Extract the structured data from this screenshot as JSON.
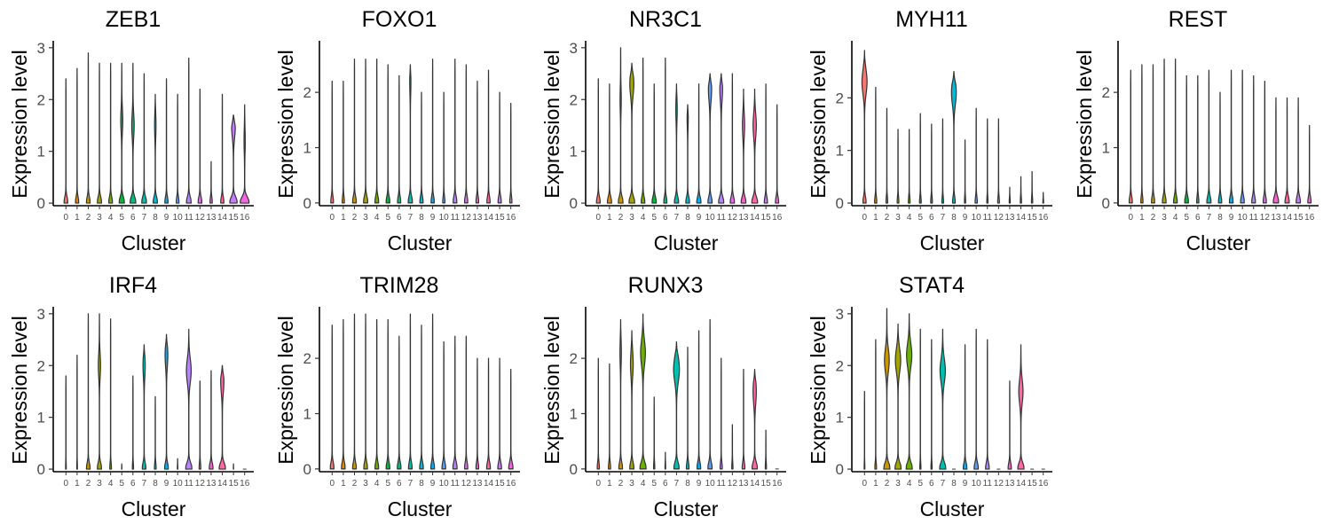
{
  "colors": [
    "#F8766D",
    "#E58700",
    "#C99800",
    "#A3A500",
    "#6BB100",
    "#00BA38",
    "#00BF7D",
    "#00C0AF",
    "#00BCD8",
    "#00B0F6",
    "#619CFF",
    "#B983FF",
    "#E76BF3",
    "#FD61D1",
    "#FF67A4",
    "#C77CFF",
    "#F564E3"
  ],
  "chart_data": [
    {
      "type": "violin",
      "title": "ZEB1",
      "xlabel": "Cluster",
      "ylabel": "Expression level",
      "categories": [
        "0",
        "1",
        "2",
        "3",
        "4",
        "5",
        "6",
        "7",
        "8",
        "9",
        "10",
        "11",
        "12",
        "13",
        "14",
        "15",
        "16"
      ],
      "yticks": [
        0,
        1,
        2,
        3
      ],
      "ylim": [
        -0.05,
        3.1
      ],
      "max": [
        2.4,
        2.6,
        2.9,
        2.7,
        2.7,
        2.7,
        2.7,
        2.5,
        2.1,
        2.4,
        2.1,
        2.8,
        2.2,
        0.8,
        2.1,
        1.7,
        1.9
      ],
      "width": [
        0.35,
        0.3,
        0.35,
        0.4,
        0.35,
        0.5,
        0.55,
        0.45,
        0.4,
        0.3,
        0.25,
        0.45,
        0.35,
        0.2,
        0.3,
        0.7,
        0.85
      ],
      "bulge": [
        null,
        null,
        null,
        null,
        null,
        [
          1.6,
          0.18
        ],
        [
          1.5,
          0.22
        ],
        null,
        [
          1.5,
          0.12
        ],
        null,
        null,
        null,
        null,
        null,
        null,
        [
          1.5,
          0.35
        ],
        [
          1.2,
          0.1
        ]
      ]
    },
    {
      "type": "violin",
      "title": "FOXO1",
      "xlabel": "Cluster",
      "ylabel": "Expression level",
      "categories": [
        "0",
        "1",
        "2",
        "3",
        "4",
        "5",
        "6",
        "7",
        "8",
        "9",
        "10",
        "11",
        "12",
        "13",
        "14",
        "15",
        "16"
      ],
      "yticks": [
        0,
        1,
        2
      ],
      "ylim": [
        -0.05,
        2.9
      ],
      "max": [
        2.2,
        2.2,
        2.6,
        2.6,
        2.6,
        2.5,
        2.3,
        2.5,
        2.0,
        2.6,
        2.0,
        2.6,
        2.5,
        2.2,
        2.4,
        2.0,
        1.8
      ],
      "width": [
        0.25,
        0.2,
        0.35,
        0.4,
        0.35,
        0.35,
        0.3,
        0.4,
        0.3,
        0.3,
        0.2,
        0.35,
        0.3,
        0.25,
        0.3,
        0.3,
        0.2
      ],
      "bulge": [
        null,
        null,
        null,
        null,
        null,
        null,
        null,
        [
          2.2,
          0.1
        ],
        null,
        null,
        null,
        null,
        null,
        null,
        null,
        null,
        null
      ]
    },
    {
      "type": "violin",
      "title": "NR3C1",
      "xlabel": "Cluster",
      "ylabel": "Expression level",
      "categories": [
        "0",
        "1",
        "2",
        "3",
        "4",
        "5",
        "6",
        "7",
        "8",
        "9",
        "10",
        "11",
        "12",
        "13",
        "14",
        "15",
        "16"
      ],
      "yticks": [
        0,
        1,
        2,
        3
      ],
      "ylim": [
        -0.05,
        3.1
      ],
      "max": [
        2.4,
        2.3,
        3.0,
        2.7,
        2.8,
        2.3,
        2.8,
        2.3,
        1.9,
        2.3,
        2.5,
        2.5,
        2.5,
        2.2,
        2.2,
        2.3,
        1.9
      ],
      "width": [
        0.35,
        0.4,
        0.45,
        0.55,
        0.35,
        0.4,
        0.3,
        0.4,
        0.35,
        0.4,
        0.4,
        0.5,
        0.4,
        0.45,
        0.55,
        0.3,
        0.3
      ],
      "bulge": [
        null,
        null,
        [
          2.0,
          0.1
        ],
        [
          2.3,
          0.38
        ],
        null,
        null,
        null,
        [
          1.8,
          0.12
        ],
        [
          1.7,
          0.1
        ],
        null,
        [
          2.2,
          0.3
        ],
        [
          2.2,
          0.25
        ],
        null,
        [
          1.5,
          0.2
        ],
        [
          1.5,
          0.3
        ],
        null,
        null
      ]
    },
    {
      "type": "violin",
      "title": "MYH11",
      "xlabel": "Cluster",
      "ylabel": "Expression level",
      "categories": [
        "0",
        "1",
        "2",
        "3",
        "4",
        "5",
        "6",
        "7",
        "8",
        "9",
        "10",
        "11",
        "12",
        "13",
        "14",
        "15",
        "16"
      ],
      "yticks": [
        0,
        1,
        2
      ],
      "ylim": [
        -0.05,
        3.05
      ],
      "max": [
        2.9,
        2.2,
        1.8,
        1.4,
        1.4,
        1.7,
        1.5,
        1.6,
        2.5,
        1.2,
        1.8,
        1.6,
        1.6,
        0.3,
        0.5,
        0.6,
        0.2
      ],
      "width": [
        0.3,
        0.2,
        0.15,
        0.15,
        0.15,
        0.15,
        0.15,
        0.15,
        0.25,
        0.1,
        0.2,
        0.1,
        0.15,
        0.08,
        0.1,
        0.1,
        0.08
      ],
      "bulge": [
        [
          2.3,
          0.48
        ],
        null,
        null,
        null,
        null,
        null,
        null,
        null,
        [
          2.1,
          0.45
        ],
        null,
        null,
        null,
        null,
        null,
        null,
        null,
        null
      ]
    },
    {
      "type": "violin",
      "title": "REST",
      "xlabel": "Cluster",
      "ylabel": "Expression level",
      "categories": [
        "0",
        "1",
        "2",
        "3",
        "4",
        "5",
        "6",
        "7",
        "8",
        "9",
        "10",
        "11",
        "12",
        "13",
        "14",
        "15",
        "16"
      ],
      "yticks": [
        0,
        1,
        2
      ],
      "ylim": [
        -0.05,
        2.9
      ],
      "max": [
        2.4,
        2.5,
        2.5,
        2.6,
        2.6,
        2.3,
        2.3,
        2.4,
        2.0,
        2.4,
        2.4,
        2.3,
        2.2,
        1.9,
        1.9,
        1.9,
        1.4
      ],
      "width": [
        0.3,
        0.2,
        0.3,
        0.35,
        0.35,
        0.35,
        0.2,
        0.4,
        0.3,
        0.35,
        0.35,
        0.35,
        0.3,
        0.5,
        0.4,
        0.4,
        0.3
      ],
      "bulge": [
        null,
        null,
        null,
        null,
        null,
        null,
        null,
        null,
        null,
        null,
        null,
        null,
        null,
        null,
        null,
        null,
        null
      ]
    },
    {
      "type": "violin",
      "title": "IRF4",
      "xlabel": "Cluster",
      "ylabel": "Expression level",
      "categories": [
        "0",
        "1",
        "2",
        "3",
        "4",
        "5",
        "6",
        "7",
        "8",
        "9",
        "10",
        "11",
        "12",
        "13",
        "14",
        "15",
        "16"
      ],
      "yticks": [
        0,
        1,
        2,
        3
      ],
      "ylim": [
        -0.05,
        3.1
      ],
      "max": [
        1.8,
        2.2,
        3.0,
        3.0,
        2.9,
        0.1,
        1.8,
        2.4,
        1.4,
        2.6,
        0.2,
        2.7,
        1.7,
        1.9,
        2.0,
        0.1,
        0.0
      ],
      "width": [
        0.05,
        0.05,
        0.35,
        0.4,
        0.15,
        0.05,
        0.1,
        0.35,
        0.15,
        0.35,
        0.05,
        0.6,
        0.15,
        0.35,
        0.6,
        0.05,
        0.0
      ],
      "bulge": [
        null,
        null,
        null,
        [
          2.0,
          0.2
        ],
        null,
        null,
        null,
        [
          2.0,
          0.2
        ],
        null,
        [
          2.2,
          0.25
        ],
        null,
        [
          1.9,
          0.45
        ],
        null,
        null,
        [
          1.7,
          0.3
        ],
        null,
        null
      ]
    },
    {
      "type": "violin",
      "title": "TRIM28",
      "xlabel": "Cluster",
      "ylabel": "Expression level",
      "categories": [
        "0",
        "1",
        "2",
        "3",
        "4",
        "5",
        "6",
        "7",
        "8",
        "9",
        "10",
        "11",
        "12",
        "13",
        "14",
        "15",
        "16"
      ],
      "yticks": [
        0,
        1,
        2
      ],
      "ylim": [
        -0.05,
        2.9
      ],
      "max": [
        2.6,
        2.7,
        2.8,
        2.8,
        2.7,
        2.7,
        2.4,
        2.8,
        2.6,
        2.8,
        2.3,
        2.4,
        2.4,
        2.0,
        2.0,
        2.0,
        1.8
      ],
      "width": [
        0.35,
        0.35,
        0.35,
        0.35,
        0.35,
        0.35,
        0.35,
        0.35,
        0.35,
        0.35,
        0.35,
        0.4,
        0.3,
        0.25,
        0.35,
        0.35,
        0.4
      ],
      "bulge": [
        null,
        null,
        null,
        null,
        null,
        null,
        null,
        null,
        null,
        null,
        null,
        null,
        null,
        null,
        null,
        null,
        null
      ]
    },
    {
      "type": "violin",
      "title": "RUNX3",
      "xlabel": "Cluster",
      "ylabel": "Expression level",
      "categories": [
        "0",
        "1",
        "2",
        "3",
        "4",
        "5",
        "6",
        "7",
        "8",
        "9",
        "10",
        "11",
        "12",
        "13",
        "14",
        "15",
        "16"
      ],
      "yticks": [
        0,
        1,
        2
      ],
      "ylim": [
        -0.05,
        2.9
      ],
      "max": [
        2.0,
        1.9,
        2.7,
        2.5,
        2.8,
        1.3,
        0.3,
        2.3,
        2.2,
        2.5,
        2.7,
        2.0,
        0.8,
        1.8,
        1.8,
        0.7,
        0.0
      ],
      "width": [
        0.2,
        0.2,
        0.35,
        0.4,
        0.6,
        0.1,
        0.05,
        0.5,
        0.25,
        0.35,
        0.4,
        0.2,
        0.1,
        0.25,
        0.5,
        0.1,
        0.0
      ],
      "bulge": [
        null,
        null,
        [
          2.1,
          0.12
        ],
        [
          1.9,
          0.25
        ],
        [
          2.1,
          0.45
        ],
        null,
        null,
        [
          1.8,
          0.55
        ],
        null,
        null,
        null,
        null,
        null,
        null,
        [
          1.4,
          0.3
        ],
        null,
        null
      ]
    },
    {
      "type": "violin",
      "title": "STAT4",
      "xlabel": "Cluster",
      "ylabel": "Expression level",
      "categories": [
        "0",
        "1",
        "2",
        "3",
        "4",
        "5",
        "6",
        "7",
        "8",
        "9",
        "10",
        "11",
        "12",
        "13",
        "14",
        "15",
        "16"
      ],
      "yticks": [
        0,
        1,
        2,
        3
      ],
      "ylim": [
        -0.05,
        3.1
      ],
      "max": [
        1.5,
        2.5,
        3.1,
        2.8,
        3.0,
        2.7,
        2.5,
        2.7,
        0.0,
        2.4,
        2.7,
        2.5,
        0.0,
        1.7,
        2.4,
        0.0,
        0.0
      ],
      "width": [
        0.05,
        0.15,
        0.6,
        0.6,
        0.6,
        0.1,
        0.1,
        0.6,
        0.0,
        0.35,
        0.4,
        0.35,
        0.0,
        0.3,
        0.6,
        0.0,
        0.0
      ],
      "bulge": [
        null,
        null,
        [
          2.1,
          0.45
        ],
        [
          2.1,
          0.5
        ],
        [
          2.2,
          0.5
        ],
        null,
        null,
        [
          1.9,
          0.5
        ],
        null,
        null,
        null,
        null,
        null,
        null,
        [
          1.5,
          0.4
        ],
        null,
        null
      ]
    }
  ]
}
